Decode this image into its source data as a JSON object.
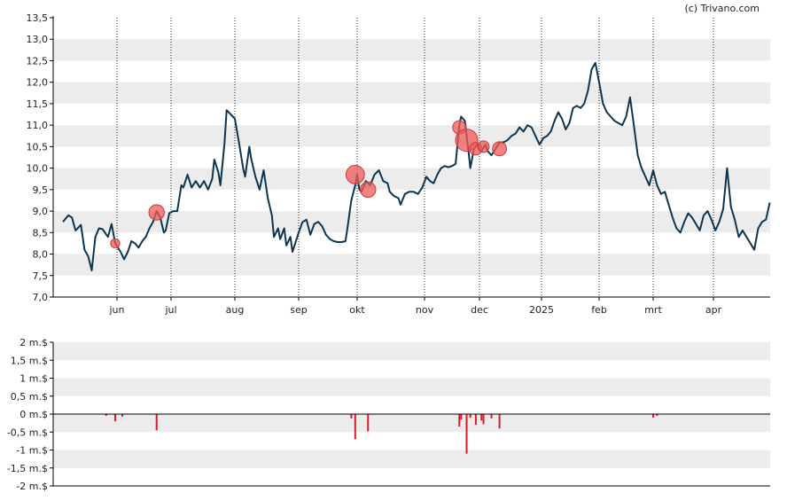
{
  "credit": "(c) Trivano.com",
  "colors": {
    "band": "#ececec",
    "line": "#0d3550",
    "marker": "#f05a5a",
    "bar": "#d81b2a",
    "axis": "#000000"
  },
  "chart_data": [
    {
      "type": "line",
      "title": "",
      "xlabel": "",
      "ylabel": "",
      "ylim": [
        7.0,
        13.5
      ],
      "yticks": [
        "7,0",
        "7,5",
        "8,0",
        "8,5",
        "9,0",
        "9,5",
        "10,0",
        "10,5",
        "11,0",
        "11,5",
        "12,0",
        "12,5",
        "13,0",
        "13,5"
      ],
      "xticks": [
        {
          "label": "jun",
          "date": "2024-06-01"
        },
        {
          "label": "jul",
          "date": "2024-07-01"
        },
        {
          "label": "aug",
          "date": "2024-08-01"
        },
        {
          "label": "sep",
          "date": "2024-09-01"
        },
        {
          "label": "okt",
          "date": "2024-10-01"
        },
        {
          "label": "nov",
          "date": "2024-11-01"
        },
        {
          "label": "dec",
          "date": "2024-12-01"
        },
        {
          "label": "2025",
          "date": "2025-01-01"
        },
        {
          "label": "feb",
          "date": "2025-02-01"
        },
        {
          "label": "mrt",
          "date": "2025-03-01"
        },
        {
          "label": "apr",
          "date": "2025-04-01"
        }
      ],
      "grid": "alternating horizontal bands, dotted vertical lines at month starts",
      "series": [
        {
          "points": [
            [
              "2024-05-02",
              8.75
            ],
            [
              "2024-05-05",
              8.9
            ],
            [
              "2024-05-07",
              8.85
            ],
            [
              "2024-05-09",
              8.55
            ],
            [
              "2024-05-12",
              8.68
            ],
            [
              "2024-05-14",
              8.1
            ],
            [
              "2024-05-16",
              7.95
            ],
            [
              "2024-05-18",
              7.62
            ],
            [
              "2024-05-20",
              8.4
            ],
            [
              "2024-05-22",
              8.6
            ],
            [
              "2024-05-24",
              8.58
            ],
            [
              "2024-05-27",
              8.4
            ],
            [
              "2024-05-29",
              8.7
            ],
            [
              "2024-05-31",
              8.25
            ],
            [
              "2024-06-03",
              8.05
            ],
            [
              "2024-06-05",
              7.88
            ],
            [
              "2024-06-07",
              8.05
            ],
            [
              "2024-06-09",
              8.3
            ],
            [
              "2024-06-11",
              8.25
            ],
            [
              "2024-06-13",
              8.15
            ],
            [
              "2024-06-15",
              8.3
            ],
            [
              "2024-06-17",
              8.4
            ],
            [
              "2024-06-19",
              8.6
            ],
            [
              "2024-06-21",
              8.75
            ],
            [
              "2024-06-23",
              9.0
            ],
            [
              "2024-06-25",
              8.85
            ],
            [
              "2024-06-27",
              8.5
            ],
            [
              "2024-06-28",
              8.55
            ],
            [
              "2024-06-30",
              8.95
            ],
            [
              "2024-07-02",
              9.0
            ],
            [
              "2024-07-04",
              9.0
            ],
            [
              "2024-07-06",
              9.6
            ],
            [
              "2024-07-07",
              9.55
            ],
            [
              "2024-07-09",
              9.85
            ],
            [
              "2024-07-11",
              9.55
            ],
            [
              "2024-07-13",
              9.7
            ],
            [
              "2024-07-15",
              9.55
            ],
            [
              "2024-07-17",
              9.7
            ],
            [
              "2024-07-19",
              9.5
            ],
            [
              "2024-07-21",
              9.75
            ],
            [
              "2024-07-22",
              10.2
            ],
            [
              "2024-07-24",
              9.9
            ],
            [
              "2024-07-25",
              9.6
            ],
            [
              "2024-07-27",
              10.6
            ],
            [
              "2024-07-28",
              11.35
            ],
            [
              "2024-07-30",
              11.25
            ],
            [
              "2024-08-01",
              11.15
            ],
            [
              "2024-08-03",
              10.6
            ],
            [
              "2024-08-05",
              10.0
            ],
            [
              "2024-08-06",
              9.8
            ],
            [
              "2024-08-08",
              10.5
            ],
            [
              "2024-08-09",
              10.2
            ],
            [
              "2024-08-11",
              9.8
            ],
            [
              "2024-08-13",
              9.5
            ],
            [
              "2024-08-15",
              9.95
            ],
            [
              "2024-08-17",
              9.3
            ],
            [
              "2024-08-19",
              8.9
            ],
            [
              "2024-08-20",
              8.4
            ],
            [
              "2024-08-22",
              8.6
            ],
            [
              "2024-08-23",
              8.35
            ],
            [
              "2024-08-25",
              8.6
            ],
            [
              "2024-08-26",
              8.2
            ],
            [
              "2024-08-28",
              8.4
            ],
            [
              "2024-08-29",
              8.05
            ],
            [
              "2024-09-01",
              8.5
            ],
            [
              "2024-09-03",
              8.75
            ],
            [
              "2024-09-05",
              8.8
            ],
            [
              "2024-09-07",
              8.45
            ],
            [
              "2024-09-09",
              8.7
            ],
            [
              "2024-09-11",
              8.75
            ],
            [
              "2024-09-13",
              8.65
            ],
            [
              "2024-09-15",
              8.45
            ],
            [
              "2024-09-17",
              8.35
            ],
            [
              "2024-09-19",
              8.3
            ],
            [
              "2024-09-21",
              8.28
            ],
            [
              "2024-09-23",
              8.28
            ],
            [
              "2024-09-25",
              8.3
            ],
            [
              "2024-09-26",
              8.6
            ],
            [
              "2024-09-28",
              9.25
            ],
            [
              "2024-09-30",
              9.6
            ],
            [
              "2024-10-01",
              9.85
            ],
            [
              "2024-10-02",
              9.5
            ],
            [
              "2024-10-03",
              9.45
            ],
            [
              "2024-10-05",
              9.7
            ],
            [
              "2024-10-07",
              9.6
            ],
            [
              "2024-10-09",
              9.85
            ],
            [
              "2024-10-11",
              9.95
            ],
            [
              "2024-10-13",
              9.7
            ],
            [
              "2024-10-15",
              9.65
            ],
            [
              "2024-10-16",
              9.45
            ],
            [
              "2024-10-18",
              9.35
            ],
            [
              "2024-10-20",
              9.3
            ],
            [
              "2024-10-21",
              9.15
            ],
            [
              "2024-10-23",
              9.4
            ],
            [
              "2024-10-25",
              9.45
            ],
            [
              "2024-10-27",
              9.45
            ],
            [
              "2024-10-29",
              9.4
            ],
            [
              "2024-10-31",
              9.55
            ],
            [
              "2024-11-02",
              9.8
            ],
            [
              "2024-11-04",
              9.7
            ],
            [
              "2024-11-06",
              9.65
            ],
            [
              "2024-11-08",
              9.85
            ],
            [
              "2024-11-10",
              10.0
            ],
            [
              "2024-11-12",
              10.05
            ],
            [
              "2024-11-14",
              10.02
            ],
            [
              "2024-11-16",
              10.05
            ],
            [
              "2024-11-18",
              10.1
            ],
            [
              "2024-11-20",
              11.0
            ],
            [
              "2024-11-21",
              11.2
            ],
            [
              "2024-11-23",
              11.1
            ],
            [
              "2024-11-25",
              10.4
            ],
            [
              "2024-11-26",
              10.0
            ],
            [
              "2024-11-28",
              10.45
            ],
            [
              "2024-11-30",
              10.55
            ],
            [
              "2024-12-02",
              10.4
            ],
            [
              "2024-12-04",
              10.55
            ],
            [
              "2024-12-05",
              10.4
            ],
            [
              "2024-12-07",
              10.3
            ],
            [
              "2024-12-09",
              10.45
            ],
            [
              "2024-12-11",
              10.6
            ],
            [
              "2024-12-13",
              10.6
            ],
            [
              "2024-12-15",
              10.65
            ],
            [
              "2024-12-17",
              10.75
            ],
            [
              "2024-12-19",
              10.8
            ],
            [
              "2024-12-21",
              10.95
            ],
            [
              "2024-12-23",
              10.85
            ],
            [
              "2024-12-25",
              11.0
            ],
            [
              "2024-12-27",
              10.95
            ],
            [
              "2024-12-29",
              10.75
            ],
            [
              "2024-12-31",
              10.55
            ],
            [
              "2025-01-02",
              10.7
            ],
            [
              "2025-01-04",
              10.75
            ],
            [
              "2025-01-06",
              10.85
            ],
            [
              "2025-01-08",
              11.1
            ],
            [
              "2025-01-10",
              11.3
            ],
            [
              "2025-01-12",
              11.15
            ],
            [
              "2025-01-14",
              10.9
            ],
            [
              "2025-01-16",
              11.05
            ],
            [
              "2025-01-18",
              11.4
            ],
            [
              "2025-01-20",
              11.45
            ],
            [
              "2025-01-22",
              11.4
            ],
            [
              "2025-01-24",
              11.5
            ],
            [
              "2025-01-26",
              11.8
            ],
            [
              "2025-01-28",
              12.3
            ],
            [
              "2025-01-30",
              12.45
            ],
            [
              "2025-02-01",
              12.0
            ],
            [
              "2025-02-03",
              11.5
            ],
            [
              "2025-02-05",
              11.3
            ],
            [
              "2025-02-07",
              11.2
            ],
            [
              "2025-02-09",
              11.1
            ],
            [
              "2025-02-11",
              11.05
            ],
            [
              "2025-02-13",
              11.0
            ],
            [
              "2025-02-15",
              11.2
            ],
            [
              "2025-02-17",
              11.65
            ],
            [
              "2025-02-19",
              11.0
            ],
            [
              "2025-02-21",
              10.3
            ],
            [
              "2025-02-23",
              10.0
            ],
            [
              "2025-02-25",
              9.8
            ],
            [
              "2025-02-27",
              9.6
            ],
            [
              "2025-03-01",
              9.95
            ],
            [
              "2025-03-03",
              9.6
            ],
            [
              "2025-03-05",
              9.4
            ],
            [
              "2025-03-07",
              9.45
            ],
            [
              "2025-03-09",
              9.15
            ],
            [
              "2025-03-11",
              8.85
            ],
            [
              "2025-03-13",
              8.6
            ],
            [
              "2025-03-15",
              8.5
            ],
            [
              "2025-03-17",
              8.75
            ],
            [
              "2025-03-19",
              8.95
            ],
            [
              "2025-03-21",
              8.85
            ],
            [
              "2025-03-23",
              8.7
            ],
            [
              "2025-03-25",
              8.55
            ],
            [
              "2025-03-27",
              8.9
            ],
            [
              "2025-03-29",
              9.0
            ],
            [
              "2025-03-31",
              8.8
            ],
            [
              "2025-04-02",
              8.55
            ],
            [
              "2025-04-04",
              8.75
            ],
            [
              "2025-04-06",
              9.05
            ],
            [
              "2025-04-08",
              10.0
            ],
            [
              "2025-04-10",
              9.1
            ],
            [
              "2025-04-12",
              8.8
            ],
            [
              "2025-04-14",
              8.4
            ],
            [
              "2025-04-16",
              8.55
            ],
            [
              "2025-04-18",
              8.4
            ],
            [
              "2025-04-20",
              8.25
            ],
            [
              "2025-04-22",
              8.1
            ],
            [
              "2025-04-24",
              8.6
            ],
            [
              "2025-04-26",
              8.75
            ],
            [
              "2025-04-28",
              8.8
            ],
            [
              "2025-04-30",
              9.2
            ]
          ]
        }
      ],
      "markers": [
        {
          "date": "2024-05-31",
          "value": 8.25,
          "size": 0.1
        },
        {
          "date": "2024-06-23",
          "value": 8.97,
          "size": 0.45
        },
        {
          "date": "2024-09-30",
          "value": 9.85,
          "size": 0.7
        },
        {
          "date": "2024-10-06",
          "value": 9.5,
          "size": 0.45
        },
        {
          "date": "2024-11-20",
          "value": 10.95,
          "size": 0.3
        },
        {
          "date": "2024-11-24",
          "value": 10.65,
          "size": 1.1
        },
        {
          "date": "2024-11-29",
          "value": 10.45,
          "size": 0.25
        },
        {
          "date": "2024-12-03",
          "value": 10.5,
          "size": 0.2
        },
        {
          "date": "2024-12-11",
          "value": 10.45,
          "size": 0.35
        }
      ]
    },
    {
      "type": "bar",
      "title": "",
      "xlabel": "",
      "ylabel": "",
      "ylim": [
        -2,
        2
      ],
      "yticks": [
        "2 m.$",
        "1,5 m.$",
        "1 m.$",
        "0,5 m.$",
        "0 m.$",
        "-0,5 m.$",
        "-1 m.$",
        "-1,5 m.$",
        "-2 m.$"
      ],
      "bars": [
        {
          "date": "2024-05-26",
          "value": -0.05
        },
        {
          "date": "2024-05-31",
          "value": -0.2
        },
        {
          "date": "2024-06-04",
          "value": -0.07
        },
        {
          "date": "2024-06-23",
          "value": -0.45
        },
        {
          "date": "2024-09-28",
          "value": -0.12
        },
        {
          "date": "2024-09-30",
          "value": -0.7
        },
        {
          "date": "2024-10-06",
          "value": -0.48
        },
        {
          "date": "2024-11-20",
          "value": -0.35
        },
        {
          "date": "2024-11-21",
          "value": -0.15
        },
        {
          "date": "2024-11-24",
          "value": -1.1
        },
        {
          "date": "2024-11-26",
          "value": -0.1
        },
        {
          "date": "2024-11-29",
          "value": -0.3
        },
        {
          "date": "2024-12-02",
          "value": -0.18
        },
        {
          "date": "2024-12-03",
          "value": -0.28
        },
        {
          "date": "2024-12-07",
          "value": -0.12
        },
        {
          "date": "2024-12-11",
          "value": -0.4
        },
        {
          "date": "2025-02-29",
          "value": -0.1
        },
        {
          "date": "2025-03-03",
          "value": -0.05
        }
      ]
    }
  ]
}
